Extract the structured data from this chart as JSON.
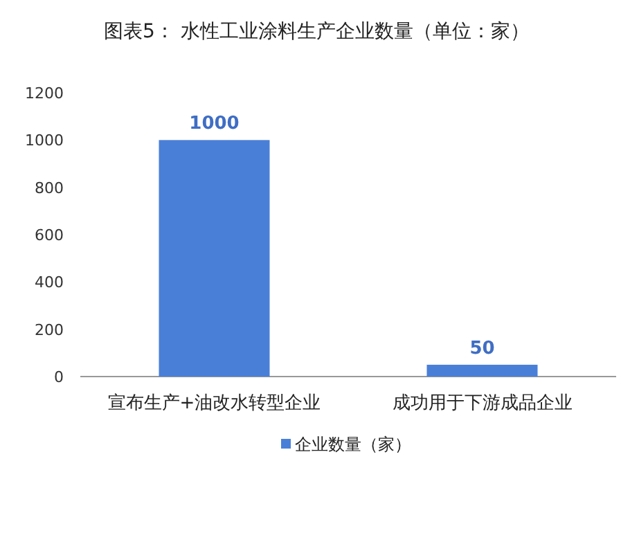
{
  "chart_data": {
    "type": "bar",
    "title": "图表5：  水性工业涂料生产企业数量（单位：家）",
    "categories": [
      "宣布生产+油改水转型企业",
      "成功用于下游成品企业"
    ],
    "series": [
      {
        "name": "企业数量（家）",
        "color": "#4a7fd8",
        "values": [
          1000,
          50
        ]
      }
    ],
    "ylim": [
      0,
      1200
    ],
    "yticks": [
      0,
      200,
      400,
      600,
      800,
      1000,
      1200
    ],
    "data_labels": true,
    "legend": "bottom",
    "grid": false
  }
}
